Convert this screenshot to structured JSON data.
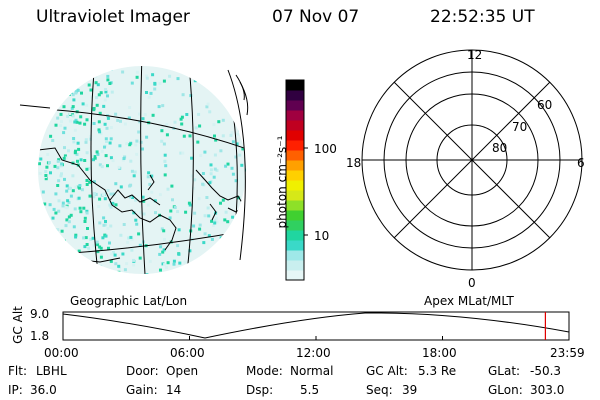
{
  "header": {
    "instrument": "Ultraviolet Imager",
    "date": "07 Nov 07",
    "time": "22:52:35 UT"
  },
  "colorbar": {
    "unit_label": "photon cm⁻²s⁻¹",
    "ticks": [
      "100",
      "10"
    ],
    "colors": [
      "#e6f6f6",
      "#c9efef",
      "#9fe8e8",
      "#3ad9c8",
      "#20d6a0",
      "#30d060",
      "#40d030",
      "#8ee028",
      "#d6e818",
      "#f0f000",
      "#ffd000",
      "#ffa000",
      "#ff6000",
      "#ff2000",
      "#e00000",
      "#c00020",
      "#a00040",
      "#600050",
      "#300040",
      "#000000"
    ]
  },
  "left_panel": {
    "label": "Geographic Lat/Lon"
  },
  "right_panel": {
    "label": "Apex MLat/MLT",
    "mlt_labels": {
      "top": "12",
      "left": "18",
      "right": "6",
      "bottom": "0"
    },
    "lat_labels": [
      "60",
      "70",
      "80"
    ]
  },
  "timeline": {
    "ylabel": "GC Alt",
    "ymax": "9.0",
    "ymin": "1.8",
    "ticks": [
      "00:00",
      "06:00",
      "12:00",
      "18:00",
      "23:59"
    ],
    "marker_time_hours": 22.88,
    "marker_color": "#e00000"
  },
  "info": {
    "row1": [
      {
        "key": "Flt:",
        "value": "LBHL"
      },
      {
        "key": "Door:",
        "value": "Open"
      },
      {
        "key": "Mode:",
        "value": "Normal"
      },
      {
        "key": "GC Alt:",
        "value": "5.3 Re"
      },
      {
        "key": "GLat:",
        "value": "-50.3"
      }
    ],
    "row2": [
      {
        "key": "IP:",
        "value": "36.0"
      },
      {
        "key": "Gain:",
        "value": "14"
      },
      {
        "key": "Dsp:",
        "value": "5.5"
      },
      {
        "key": "Seq:",
        "value": "39"
      },
      {
        "key": "GLon:",
        "value": "303.0"
      }
    ]
  }
}
